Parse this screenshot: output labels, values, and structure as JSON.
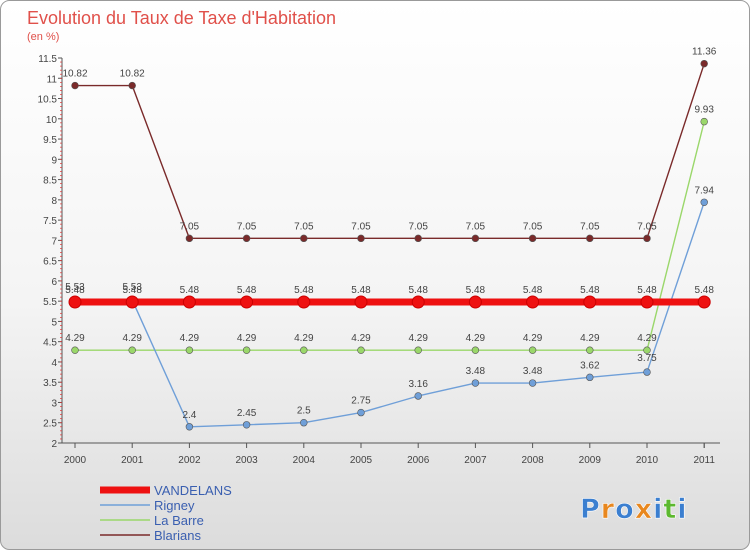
{
  "chart_data": {
    "type": "line",
    "title": "Evolution du Taux de Taxe d'Habitation",
    "subtitle": "(en %)",
    "xlabel": "",
    "ylabel": "",
    "categories": [
      "2000",
      "2001",
      "2002",
      "2003",
      "2004",
      "2005",
      "2006",
      "2007",
      "2008",
      "2009",
      "2010",
      "2011"
    ],
    "ylim": [
      2,
      11.5
    ],
    "yticks": [
      2,
      2.5,
      3,
      3.5,
      4,
      4.5,
      5,
      5.5,
      6,
      6.5,
      7,
      7.5,
      8,
      8.5,
      9,
      9.5,
      10,
      10.5,
      11,
      11.5
    ],
    "ytick_labels": [
      "2",
      "2.5",
      "3",
      "3.5",
      "4",
      "4.5",
      "5",
      "5.5",
      "6",
      "6.5",
      "7",
      "7.5",
      "8",
      "8.5",
      "9",
      "9.5",
      "10",
      "10.5",
      "11",
      "11.5"
    ],
    "legend_position": "bottom-left",
    "series": [
      {
        "name": "VANDELANS",
        "color": "#ee1111",
        "values": [
          5.48,
          5.48,
          5.48,
          5.48,
          5.48,
          5.48,
          5.48,
          5.48,
          5.48,
          5.48,
          5.48,
          5.48
        ],
        "labels": [
          "5.48",
          "5.48",
          "5.48",
          "5.48",
          "5.48",
          "5.48",
          "5.48",
          "5.48",
          "5.48",
          "5.48",
          "5.48",
          "5.48"
        ]
      },
      {
        "name": "Rigney",
        "color": "#6f9fd8",
        "values": [
          5.53,
          5.53,
          2.4,
          2.45,
          2.5,
          2.75,
          3.16,
          3.48,
          3.48,
          3.62,
          3.75,
          7.94
        ],
        "labels": [
          "5.53",
          "5.53",
          "2.4",
          "2.45",
          "2.5",
          "2.75",
          "3.16",
          "3.48",
          "3.48",
          "3.62",
          "3.75",
          "7.94"
        ]
      },
      {
        "name": "La Barre",
        "color": "#9ad76a",
        "values": [
          4.29,
          4.29,
          4.29,
          4.29,
          4.29,
          4.29,
          4.29,
          4.29,
          4.29,
          4.29,
          4.29,
          9.93
        ],
        "labels": [
          "4.29",
          "4.29",
          "4.29",
          "4.29",
          "4.29",
          "4.29",
          "4.29",
          "4.29",
          "4.29",
          "4.29",
          "4.29",
          "9.93"
        ]
      },
      {
        "name": "Blarians",
        "color": "#7a2a2a",
        "values": [
          10.82,
          10.82,
          7.05,
          7.05,
          7.05,
          7.05,
          7.05,
          7.05,
          7.05,
          7.05,
          7.05,
          11.36
        ],
        "labels": [
          "10.82",
          "10.82",
          "7.05",
          "7.05",
          "7.05",
          "7.05",
          "7.05",
          "7.05",
          "7.05",
          "7.05",
          "7.05",
          "11.36"
        ]
      }
    ]
  },
  "logo": {
    "text": "Proxiti",
    "letter_colors": [
      "#3b7fd0",
      "#e8871e",
      "#3b7fd0",
      "#e8871e",
      "#3b7fd0",
      "#5cb82f",
      "#3b7fd0"
    ]
  }
}
